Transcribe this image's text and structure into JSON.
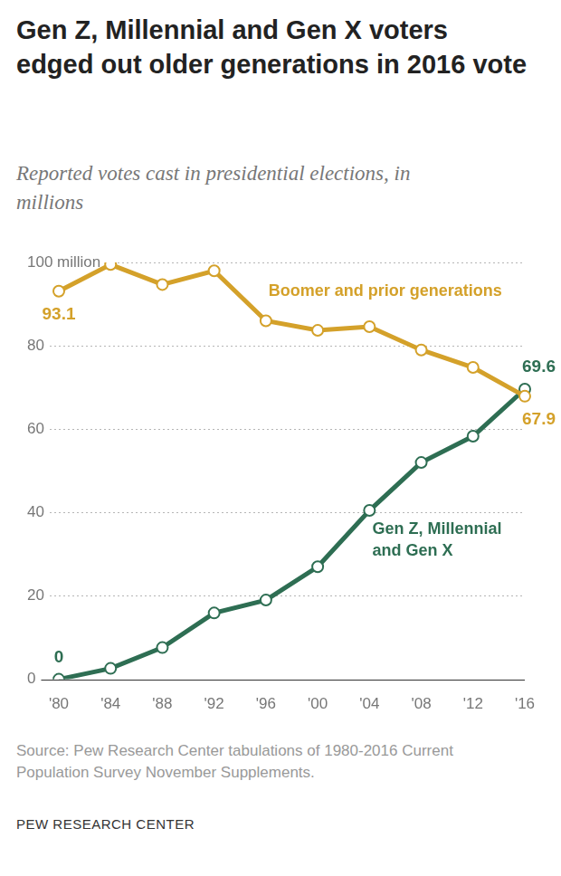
{
  "chart_data": {
    "type": "line",
    "title": "Gen Z, Millennial and Gen X voters edged out older generations in 2016 vote",
    "subtitle": "Reported votes cast in presidential elections, in millions",
    "categories": [
      "'80",
      "'84",
      "'88",
      "'92",
      "'96",
      "'00",
      "'04",
      "'08",
      "'12",
      "'16"
    ],
    "series": [
      {
        "name": "Boomer and prior generations",
        "color": "#d4a12a",
        "marker": "circle",
        "values": [
          93.1,
          99.5,
          94.7,
          98.0,
          86.0,
          83.7,
          84.6,
          79.0,
          74.8,
          67.9
        ],
        "value_labels": [
          "93.1",
          null,
          null,
          null,
          null,
          null,
          null,
          null,
          null,
          "67.9"
        ]
      },
      {
        "name": "Gen Z, Millennial and Gen X",
        "color": "#2e6e53",
        "marker": "circle",
        "values": [
          0,
          2.6,
          7.6,
          15.9,
          19.0,
          27.0,
          40.5,
          52.0,
          58.3,
          69.6
        ],
        "value_labels": [
          "0",
          null,
          null,
          null,
          null,
          null,
          null,
          null,
          null,
          "69.6"
        ]
      }
    ],
    "ylim": [
      0,
      100
    ],
    "yticks": [
      0,
      20,
      40,
      60,
      80,
      {
        "value": 100,
        "label": "100 million"
      }
    ],
    "grid": true,
    "source": "Source: Pew Research Center tabulations of 1980-2016 Current Population Survey November Supplements.",
    "credit": "PEW RESEARCH CENTER"
  }
}
